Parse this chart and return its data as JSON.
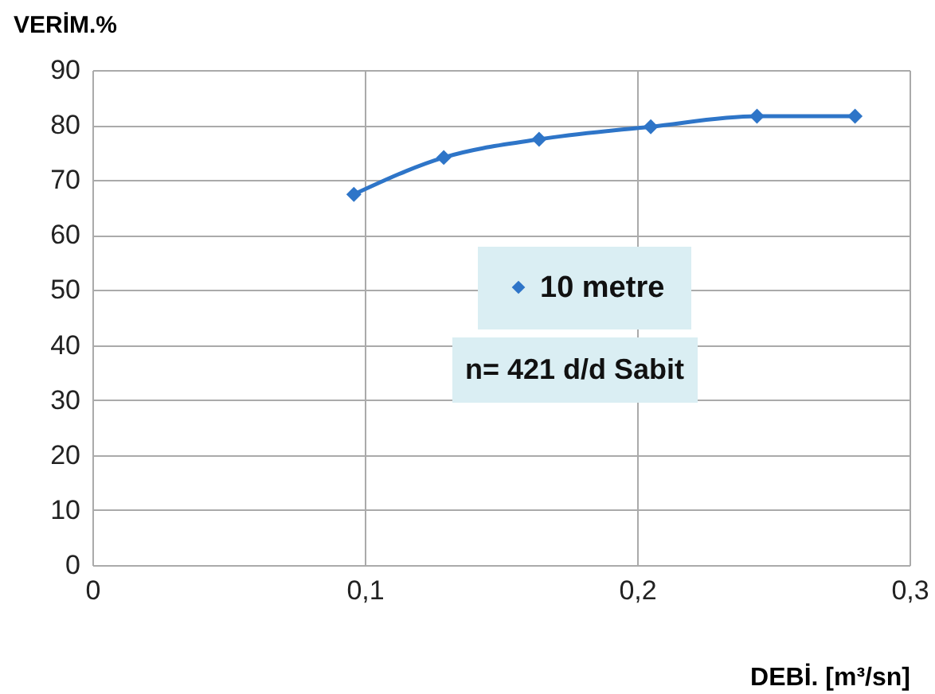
{
  "chart_data": {
    "type": "line",
    "xlabel": "DEBİ.  [m³/sn]",
    "ylabel": "VERİM.%",
    "x": [
      0.096,
      0.129,
      0.164,
      0.205,
      0.244,
      0.28
    ],
    "series": [
      {
        "name": "10 metre",
        "color": "#2e75c8",
        "values": [
          67.4,
          74.1,
          77.4,
          79.7,
          81.6,
          81.6
        ]
      }
    ],
    "xlim": [
      0,
      0.3
    ],
    "xticks": [
      0,
      {
        "value": 0.1,
        "label": "0,1"
      },
      {
        "value": 0.2,
        "label": "0,2"
      },
      {
        "value": 0.3,
        "label": "0,3"
      }
    ],
    "ylim": [
      0,
      90
    ],
    "yticks": [
      0,
      10,
      20,
      30,
      40,
      50,
      60,
      70,
      80,
      90
    ],
    "grid": true,
    "legend": "center",
    "marker": "diamond",
    "line_style": "solid",
    "annotations": [
      "n= 421 d/d Sabit"
    ]
  }
}
